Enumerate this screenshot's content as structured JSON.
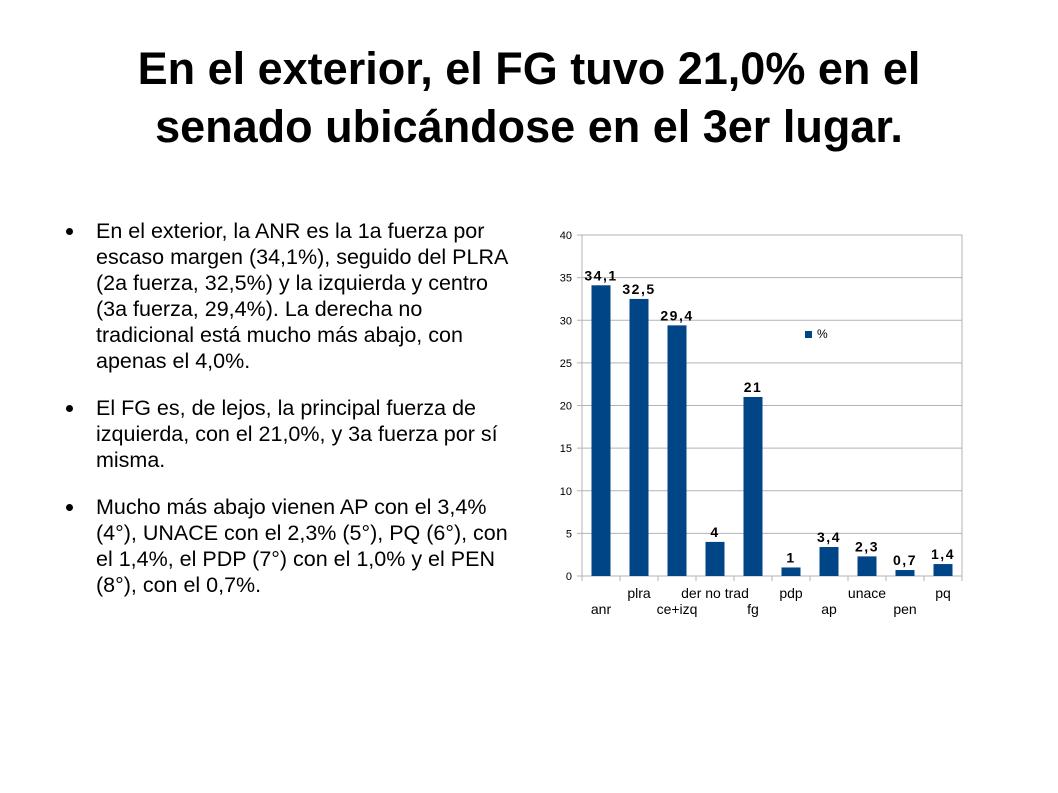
{
  "slide": {
    "title_line1": "En el exterior, el FG tuvo 21,0% en el",
    "title_line2": "senado ubicándose en el 3er lugar.",
    "bullets": [
      "En el exterior, la ANR es la 1a fuerza por escaso margen (34,1%), seguido del PLRA (2a fuerza, 32,5%) y la izquierda y centro (3a fuerza, 29,4%). La derecha no tradicional está mucho más abajo, con apenas el 4,0%.",
      "El FG es, de lejos, la principal fuerza de izquierda, con el 21,0%, y 3a fuerza por sí misma.",
      "Mucho más abajo vienen AP con el 3,4% (4°), UNACE con el 2,3% (5°), PQ (6°), con el 1,4%, el PDP (7°) con el 1,0% y el PEN (8°), con el 0,7%."
    ]
  },
  "chart_data": {
    "type": "bar",
    "categories": [
      "anr",
      "plra",
      "ce+izq",
      "der no trad",
      "fg",
      "pdp",
      "ap",
      "unace",
      "pen",
      "pq"
    ],
    "series": [
      {
        "name": "%",
        "values": [
          34.1,
          32.5,
          29.4,
          4,
          21,
          1,
          3.4,
          2.3,
          0.7,
          1.4
        ]
      }
    ],
    "data_labels": [
      "34,1",
      "32,5",
      "29,4",
      "4",
      "21",
      "1",
      "3,4",
      "2,3",
      "0,7",
      "1,4"
    ],
    "ylim": [
      0,
      40
    ],
    "yticks": [
      0,
      5,
      10,
      15,
      20,
      25,
      30,
      35,
      40
    ],
    "grid": true,
    "legend_position": "top-right",
    "bar_color": "#004586",
    "grid_color": "#b3b3b3"
  }
}
